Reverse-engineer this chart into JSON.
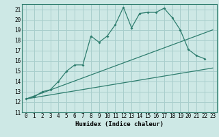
{
  "xlabel": "Humidex (Indice chaleur)",
  "xlim": [
    -0.5,
    23.5
  ],
  "ylim": [
    11,
    21.5
  ],
  "xticks": [
    0,
    1,
    2,
    3,
    4,
    5,
    6,
    7,
    8,
    9,
    10,
    11,
    12,
    13,
    14,
    15,
    16,
    17,
    18,
    19,
    20,
    21,
    22,
    23
  ],
  "yticks": [
    11,
    12,
    13,
    14,
    15,
    16,
    17,
    18,
    19,
    20,
    21
  ],
  "bg_color": "#cde8e5",
  "grid_color": "#a8cecc",
  "line_color": "#2e7d6e",
  "line1_x": [
    0,
    1,
    2,
    3,
    4,
    5,
    6,
    7,
    8,
    9,
    10,
    11,
    12,
    13,
    14,
    15,
    16,
    17,
    18,
    19,
    20,
    21,
    22
  ],
  "line1_y": [
    12.3,
    12.5,
    13.0,
    13.2,
    14.0,
    15.0,
    15.6,
    15.6,
    18.4,
    17.8,
    18.4,
    19.5,
    21.2,
    19.2,
    20.6,
    20.7,
    20.7,
    21.1,
    20.2,
    19.0,
    17.1,
    16.5,
    16.2
  ],
  "line2_x": [
    0,
    23
  ],
  "line2_y": [
    12.3,
    15.3
  ],
  "line3_x": [
    0,
    23
  ],
  "line3_y": [
    12.3,
    19.0
  ]
}
